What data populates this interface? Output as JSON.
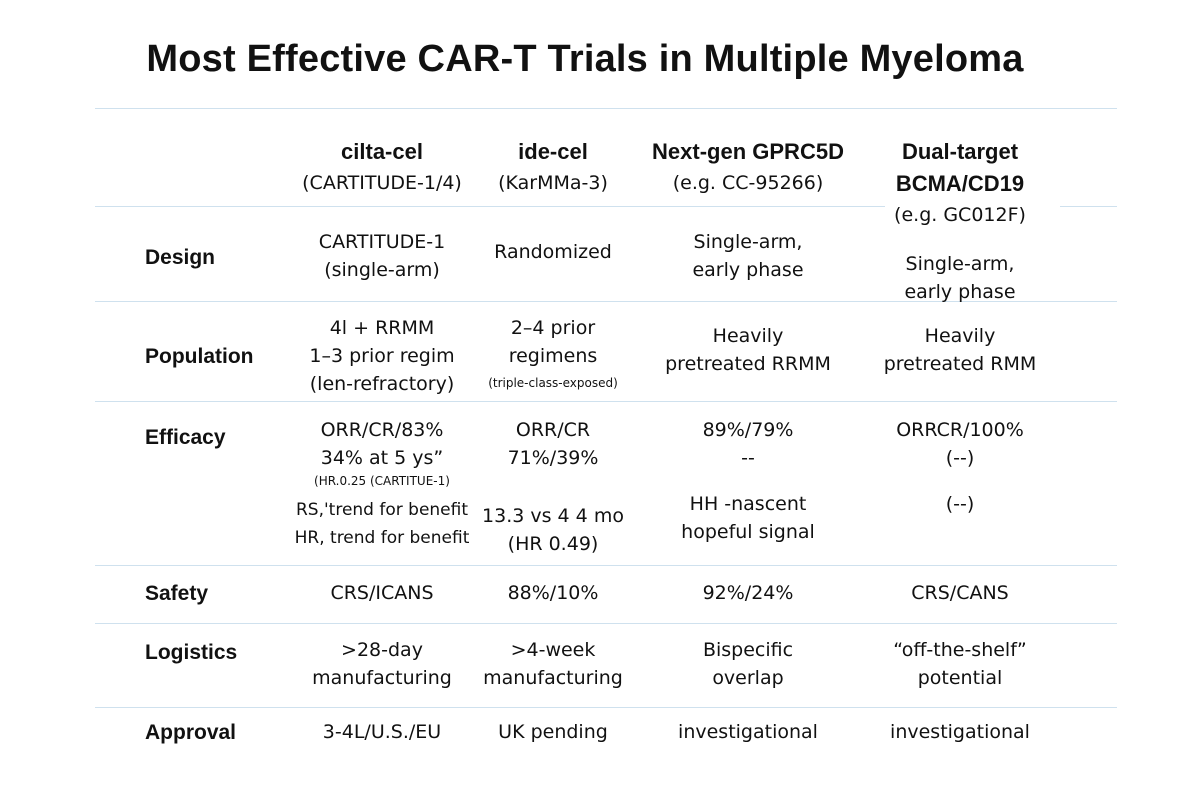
{
  "title": "Most Effective CAR-T Trials in Multiple Myeloma",
  "columns": [
    {
      "name": "cilta-cel",
      "sub": "(CARTITUDE-1/4)"
    },
    {
      "name": "ide-cel",
      "sub": "(KarMMa-3)"
    },
    {
      "name": "Next-gen GPRC5D",
      "sub": "(e.g. CC-95266)"
    },
    {
      "name": "Dual-target",
      "name2": "BCMA/CD19",
      "sub": "(e.g. GC012F)"
    }
  ],
  "rows": {
    "design": {
      "label": "Design",
      "c1": [
        "CARTITUDE-1",
        "(single-arm)"
      ],
      "c2": [
        "Randomized"
      ],
      "c3": [
        "Single-arm,",
        "early phase"
      ],
      "c4": [
        "Single-arm,",
        "early phase"
      ]
    },
    "population": {
      "label": "Population",
      "c1": [
        "4l + RRMM",
        "1–3 prior regim",
        "(len-refractory)"
      ],
      "c2": [
        "2–4 prior",
        "regimens",
        "(triple-class-exposed)"
      ],
      "c3": [
        "Heavily",
        "pretreated RRMM"
      ],
      "c4": [
        "Heavily",
        "pretreated RMM"
      ]
    },
    "efficacy": {
      "label": "Efficacy",
      "c1": [
        "ORR/CR/83%",
        "34% at 5 ys”",
        "(HR.0.25 (CARTITUE-1)",
        "RS,'trend for benefit",
        "HR, trend for benefit"
      ],
      "c2": [
        "ORR/CR",
        "71%/39%",
        "13.3 vs 4 4 mo",
        "(HR 0.49)"
      ],
      "c3": [
        "89%/79%",
        "--",
        "HH -nascent",
        "hopeful signal"
      ],
      "c4": [
        "ORRCR/100%",
        "(--)",
        "(--)"
      ]
    },
    "safety": {
      "label": "Safety",
      "c1": "CRS/ICANS",
      "c2": "88%/10%",
      "c3": "92%/24%",
      "c4": "CRS/CANS"
    },
    "logistics": {
      "label": "Logistics",
      "c1": [
        ">28-day",
        "manufacturing"
      ],
      "c2": [
        ">4-week",
        "manufacturing"
      ],
      "c3": [
        "Bispecific",
        "overlap"
      ],
      "c4": [
        "“off-the-shelf”",
        "potential"
      ]
    },
    "approval": {
      "label": "Approval",
      "c1": "3-4L/U.S./EU",
      "c2": "UK pending",
      "c3": "investigational",
      "c4": "investigational"
    }
  }
}
